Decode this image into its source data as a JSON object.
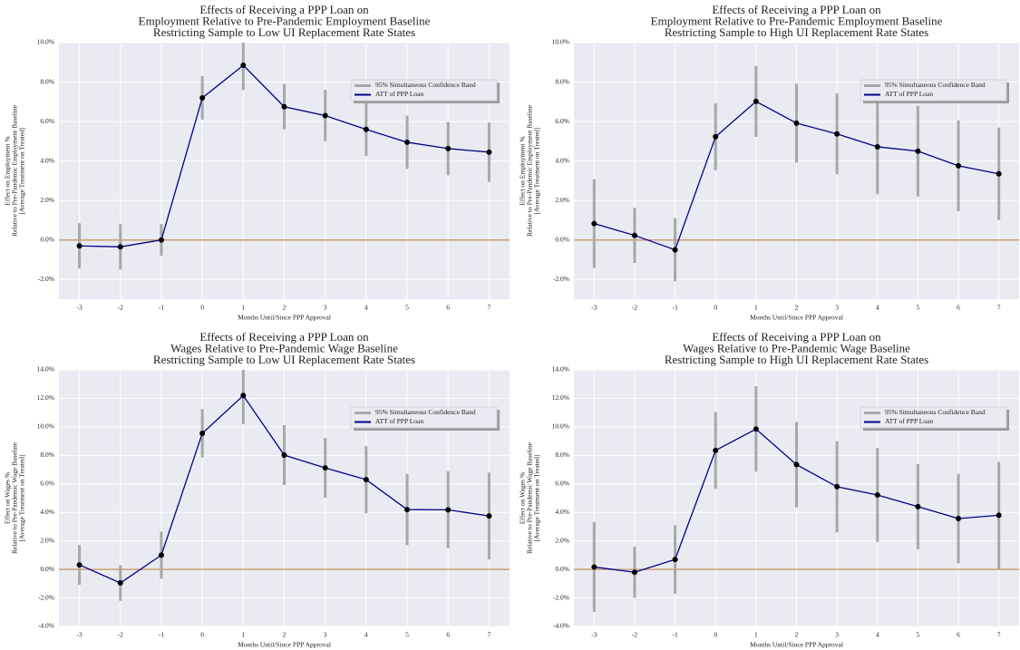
{
  "chart_data": [
    {
      "type": "line",
      "title": [
        "Effects of Receiving a PPP Loan on",
        "Employment Relative to Pre-Pandemic Employment Baseline",
        "Restricting Sample to Low UI Replacement Rate States"
      ],
      "xlabel": "Months Until/Since PPP Approval",
      "ylabel": [
        "Effect on Employment %",
        "Relative to Pre-Pandemic Employment Baseline",
        "[Average Treatment on Treated]"
      ],
      "x": [
        -3,
        -2,
        -1,
        0,
        1,
        2,
        3,
        4,
        5,
        6,
        7
      ],
      "xlim": [
        -3.5,
        7.5
      ],
      "xticks": [
        -3,
        -2,
        -1,
        0,
        1,
        2,
        3,
        4,
        5,
        6,
        7
      ],
      "ylim": [
        -3,
        10
      ],
      "yticks": [
        {
          "value": -2,
          "label": "-2.0%"
        },
        {
          "value": 0,
          "label": "0.0%"
        },
        {
          "value": 2,
          "label": "2.0%"
        },
        {
          "value": 4,
          "label": "4.0%"
        },
        {
          "value": 6,
          "label": "6.0%"
        },
        {
          "value": 8,
          "label": "8.0%"
        },
        {
          "value": 10,
          "label": "10.0%"
        }
      ],
      "grid": true,
      "legend": "upper right",
      "reference_line": 0,
      "reference_color": "#c8a070",
      "band": {
        "name": "95% Simultaneous Confidence Band",
        "color": "#a8a8a8"
      },
      "series": [
        {
          "name": "ATT of PPP Loan",
          "color": "#00008b",
          "values": [
            -0.3,
            -0.35,
            0,
            7.2,
            8.85,
            6.75,
            6.3,
            5.6,
            4.95,
            4.63,
            4.45
          ],
          "errors": [
            1.15,
            1.15,
            0.8,
            1.1,
            1.25,
            1.15,
            1.3,
            1.35,
            1.35,
            1.35,
            1.5
          ]
        }
      ]
    },
    {
      "type": "line",
      "title": [
        "Effects of Receiving a PPP Loan on",
        "Employment Relative to Pre-Pandemic Employment Baseline",
        "Restricting Sample to High UI Replacement Rate States"
      ],
      "xlabel": "Months Until/Since PPP Approval",
      "ylabel": [
        "Effect on Employment %",
        "Relative to Pre-Pandemic Employment Baseline",
        "[Average Treatment on Treated]"
      ],
      "x": [
        -3,
        -2,
        -1,
        0,
        1,
        2,
        3,
        4,
        5,
        6,
        7
      ],
      "xlim": [
        -3.5,
        7.5
      ],
      "xticks": [
        -3,
        -2,
        -1,
        0,
        1,
        2,
        3,
        4,
        5,
        6,
        7
      ],
      "ylim": [
        -3,
        10
      ],
      "yticks": [
        {
          "value": -2,
          "label": "-2.0%"
        },
        {
          "value": 0,
          "label": "0.0%"
        },
        {
          "value": 2,
          "label": "2.0%"
        },
        {
          "value": 4,
          "label": "4.0%"
        },
        {
          "value": 6,
          "label": "6.0%"
        },
        {
          "value": 8,
          "label": "8.0%"
        },
        {
          "value": 10,
          "label": "10.0%"
        }
      ],
      "grid": true,
      "legend": "upper right",
      "reference_line": 0,
      "reference_color": "#c8a070",
      "band": {
        "name": "95% Simultaneous Confidence Band",
        "color": "#a8a8a8"
      },
      "series": [
        {
          "name": "ATT of PPP Loan",
          "color": "#00008b",
          "values": [
            0.83,
            0.23,
            -0.5,
            5.23,
            7.02,
            5.92,
            5.37,
            4.72,
            4.5,
            3.76,
            3.35
          ],
          "errors": [
            2.25,
            1.4,
            1.6,
            1.7,
            1.8,
            2.0,
            2.05,
            2.4,
            2.3,
            2.3,
            2.35
          ]
        }
      ]
    },
    {
      "type": "line",
      "title": [
        "Effects of Receiving a PPP Loan on",
        "Wages Relative to Pre-Pandemic Wage Baseline",
        "Restricting Sample to Low UI Replacement Rate States"
      ],
      "xlabel": "Months Until/Since PPP Approval",
      "ylabel": [
        "Effect on Wages %",
        "Relative to  Pre-Pandemic Wage Baseline",
        "[Average Treatment on Treated]"
      ],
      "x": [
        -3,
        -2,
        -1,
        0,
        1,
        2,
        3,
        4,
        5,
        6,
        7
      ],
      "xlim": [
        -3.5,
        7.5
      ],
      "xticks": [
        -3,
        -2,
        -1,
        0,
        1,
        2,
        3,
        4,
        5,
        6,
        7
      ],
      "ylim": [
        -4,
        14
      ],
      "yticks": [
        {
          "value": -4,
          "label": "-4.0%"
        },
        {
          "value": -2,
          "label": "-2.0%"
        },
        {
          "value": 0,
          "label": "0.0%"
        },
        {
          "value": 2,
          "label": "2.0%"
        },
        {
          "value": 4,
          "label": "4.0%"
        },
        {
          "value": 6,
          "label": "6.0%"
        },
        {
          "value": 8,
          "label": "8.0%"
        },
        {
          "value": 10,
          "label": "10.0%"
        },
        {
          "value": 12,
          "label": "12.0%"
        },
        {
          "value": 14,
          "label": "14.0%"
        }
      ],
      "grid": true,
      "legend": "upper right",
      "reference_line": 0,
      "reference_color": "#c8a070",
      "band": {
        "name": "95% Simultaneous Confidence Band",
        "color": "#a8a8a8"
      },
      "series": [
        {
          "name": "ATT of PPP Loan",
          "color": "#00008b",
          "values": [
            0.32,
            -0.95,
            1.0,
            9.55,
            12.2,
            8.02,
            7.12,
            6.3,
            4.2,
            4.18,
            3.75
          ],
          "errors": [
            1.4,
            1.25,
            1.65,
            1.7,
            2.0,
            2.1,
            2.1,
            2.35,
            2.5,
            2.7,
            3.05
          ]
        }
      ]
    },
    {
      "type": "line",
      "title": [
        "Effects of Receiving a PPP Loan on",
        "Wages Relative to Pre-Pandemic Wage Baseline",
        "Restricting Sample to High UI Replacement Rate States"
      ],
      "xlabel": "Months Until/Since PPP Approval",
      "ylabel": [
        "Effect on Wages %",
        "Relative to  Pre-Pandemic Wage Baseline",
        "[Average Treatment on Treated]"
      ],
      "x": [
        -3,
        -2,
        -1,
        0,
        1,
        2,
        3,
        4,
        5,
        6,
        7
      ],
      "xlim": [
        -3.5,
        7.5
      ],
      "xticks": [
        -3,
        -2,
        -1,
        0,
        1,
        2,
        3,
        4,
        5,
        6,
        7
      ],
      "ylim": [
        -4,
        14
      ],
      "yticks": [
        {
          "value": -4,
          "label": "-4.0%"
        },
        {
          "value": -2,
          "label": "-2.0%"
        },
        {
          "value": 0,
          "label": "0.0%"
        },
        {
          "value": 2,
          "label": "2.0%"
        },
        {
          "value": 4,
          "label": "4.0%"
        },
        {
          "value": 6,
          "label": "6.0%"
        },
        {
          "value": 8,
          "label": "8.0%"
        },
        {
          "value": 10,
          "label": "10.0%"
        },
        {
          "value": 12,
          "label": "12.0%"
        },
        {
          "value": 14,
          "label": "14.0%"
        }
      ],
      "grid": true,
      "legend": "upper right",
      "reference_line": 0,
      "reference_color": "#c8a070",
      "band": {
        "name": "95% Simultaneous Confidence Band",
        "color": "#a8a8a8"
      },
      "series": [
        {
          "name": "ATT of PPP Loan",
          "color": "#00008b",
          "values": [
            0.17,
            -0.2,
            0.7,
            8.35,
            9.85,
            7.35,
            5.8,
            5.22,
            4.4,
            3.57,
            3.8
          ],
          "errors": [
            3.15,
            1.8,
            2.4,
            2.7,
            3.0,
            3.0,
            3.2,
            3.3,
            3.0,
            3.15,
            3.75
          ]
        }
      ]
    }
  ]
}
